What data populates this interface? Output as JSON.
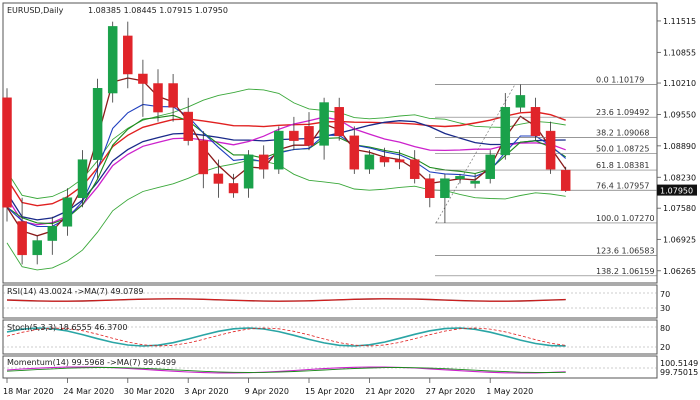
{
  "chart_data": {
    "type": "candlestick",
    "title": "EURUSD,Daily",
    "ohlc_header": "1.08385 1.08445 1.07915 1.07950",
    "price_axis": {
      "ylim": [
        1.0605,
        1.1185
      ],
      "ticks": [
        "1.11515",
        "1.10855",
        "1.10210",
        "1.09550",
        "1.08890",
        "1.08230",
        "1.07580",
        "1.06925",
        "1.06265"
      ],
      "tick_values": [
        1.11515,
        1.10855,
        1.1021,
        1.0955,
        1.0889,
        1.0823,
        1.0758,
        1.06925,
        1.06265
      ],
      "current_price": "1.07950",
      "current_price_value": 1.0795
    },
    "x_axis": {
      "labels": [
        "18 Mar 2020",
        "24 Mar 2020",
        "30 Mar 2020",
        "3 Apr 2020",
        "9 Apr 2020",
        "15 Apr 2020",
        "21 Apr 2020",
        "27 Apr 2020",
        "1 May 2020"
      ],
      "label_indices": [
        0,
        4,
        8,
        12,
        16,
        20,
        24,
        28,
        32
      ]
    },
    "candles": [
      {
        "o": 1.099,
        "h": 1.101,
        "l": 1.073,
        "c": 1.076
      },
      {
        "o": 1.073,
        "h": 1.078,
        "l": 1.064,
        "c": 1.066
      },
      {
        "o": 1.066,
        "h": 1.07,
        "l": 1.064,
        "c": 1.069
      },
      {
        "o": 1.069,
        "h": 1.074,
        "l": 1.066,
        "c": 1.072
      },
      {
        "o": 1.072,
        "h": 1.08,
        "l": 1.07,
        "c": 1.078
      },
      {
        "o": 1.078,
        "h": 1.088,
        "l": 1.076,
        "c": 1.086
      },
      {
        "o": 1.086,
        "h": 1.103,
        "l": 1.082,
        "c": 1.101
      },
      {
        "o": 1.1,
        "h": 1.115,
        "l": 1.098,
        "c": 1.114
      },
      {
        "o": 1.112,
        "h": 1.115,
        "l": 1.101,
        "c": 1.104
      },
      {
        "o": 1.104,
        "h": 1.107,
        "l": 1.095,
        "c": 1.102
      },
      {
        "o": 1.102,
        "h": 1.105,
        "l": 1.094,
        "c": 1.096
      },
      {
        "o": 1.102,
        "h": 1.104,
        "l": 1.094,
        "c": 1.097
      },
      {
        "o": 1.096,
        "h": 1.099,
        "l": 1.089,
        "c": 1.09
      },
      {
        "o": 1.09,
        "h": 1.092,
        "l": 1.08,
        "c": 1.083
      },
      {
        "o": 1.083,
        "h": 1.086,
        "l": 1.078,
        "c": 1.081
      },
      {
        "o": 1.081,
        "h": 1.083,
        "l": 1.078,
        "c": 1.079
      },
      {
        "o": 1.08,
        "h": 1.088,
        "l": 1.078,
        "c": 1.087
      },
      {
        "o": 1.087,
        "h": 1.089,
        "l": 1.082,
        "c": 1.084
      },
      {
        "o": 1.084,
        "h": 1.093,
        "l": 1.083,
        "c": 1.092
      },
      {
        "o": 1.092,
        "h": 1.095,
        "l": 1.088,
        "c": 1.09
      },
      {
        "o": 1.093,
        "h": 1.096,
        "l": 1.088,
        "c": 1.089
      },
      {
        "o": 1.089,
        "h": 1.099,
        "l": 1.086,
        "c": 1.098
      },
      {
        "o": 1.097,
        "h": 1.099,
        "l": 1.09,
        "c": 1.091
      },
      {
        "o": 1.091,
        "h": 1.093,
        "l": 1.083,
        "c": 1.084
      },
      {
        "o": 1.084,
        "h": 1.088,
        "l": 1.083,
        "c": 1.087
      },
      {
        "o": 1.0865,
        "h": 1.0885,
        "l": 1.0845,
        "c": 1.0855
      },
      {
        "o": 1.086,
        "h": 1.088,
        "l": 1.084,
        "c": 1.0855
      },
      {
        "o": 1.086,
        "h": 1.088,
        "l": 1.081,
        "c": 1.082
      },
      {
        "o": 1.082,
        "h": 1.083,
        "l": 1.076,
        "c": 1.078
      },
      {
        "o": 1.078,
        "h": 1.083,
        "l": 1.0727,
        "c": 1.082
      },
      {
        "o": 1.082,
        "h": 1.083,
        "l": 1.081,
        "c": 1.0825
      },
      {
        "o": 1.081,
        "h": 1.083,
        "l": 1.08,
        "c": 1.0815
      },
      {
        "o": 1.082,
        "h": 1.088,
        "l": 1.081,
        "c": 1.087
      },
      {
        "o": 1.087,
        "h": 1.1,
        "l": 1.086,
        "c": 1.097
      },
      {
        "o": 1.097,
        "h": 1.1018,
        "l": 1.096,
        "c": 1.0995
      },
      {
        "o": 1.097,
        "h": 1.099,
        "l": 1.09,
        "c": 1.091
      },
      {
        "o": 1.092,
        "h": 1.094,
        "l": 1.083,
        "c": 1.084
      },
      {
        "o": 1.0838,
        "h": 1.0845,
        "l": 1.0792,
        "c": 1.0795
      }
    ],
    "fibonacci": [
      {
        "label": "0.0 1.10179",
        "value": 1.10179
      },
      {
        "label": "23.6 1.09492",
        "value": 1.09492
      },
      {
        "label": "38.2 1.09068",
        "value": 1.09068
      },
      {
        "label": "50.0 1.08725",
        "value": 1.08725
      },
      {
        "label": "61.8 1.08381",
        "value": 1.08381
      },
      {
        "label": "76.4 1.07957",
        "value": 1.07957
      },
      {
        "label": "100.0 1.07270",
        "value": 1.0727
      },
      {
        "label": "123.6 1.06583",
        "value": 1.06583
      },
      {
        "label": "138.2 1.06159",
        "value": 1.06159
      }
    ],
    "indicators": {
      "rsi": {
        "label": "RSI(14) 43.0024 ->MA(7) 49.0789",
        "ticks": [
          "70",
          "30"
        ],
        "tick_values": [
          70,
          30
        ]
      },
      "stoch": {
        "label": "Stoch(5,3,3) 18.6555 46.3700",
        "ticks": [
          "80",
          "20"
        ],
        "tick_values": [
          80,
          20
        ]
      },
      "momentum": {
        "label": "Momentum(14) 99.5968 ->MA(7) 99.6499",
        "ticks": [
          "100.5149",
          "99.75015"
        ]
      }
    },
    "colors": {
      "bull": "#1aa14a",
      "bear": "#e0242a",
      "sma_red": "#e02020",
      "sma_navy": "#1a2a8a",
      "sma_magenta": "#cc22cc",
      "bollinger": "#3aa83a",
      "ema_dark": "#8b1a1a",
      "ema_blue": "#1f3fbf",
      "ema_green": "#1a8a1a",
      "stoch_main": "#2aa5a5",
      "rsi_line": "#8b1a1a",
      "momentum_line": "#cc22cc"
    }
  }
}
